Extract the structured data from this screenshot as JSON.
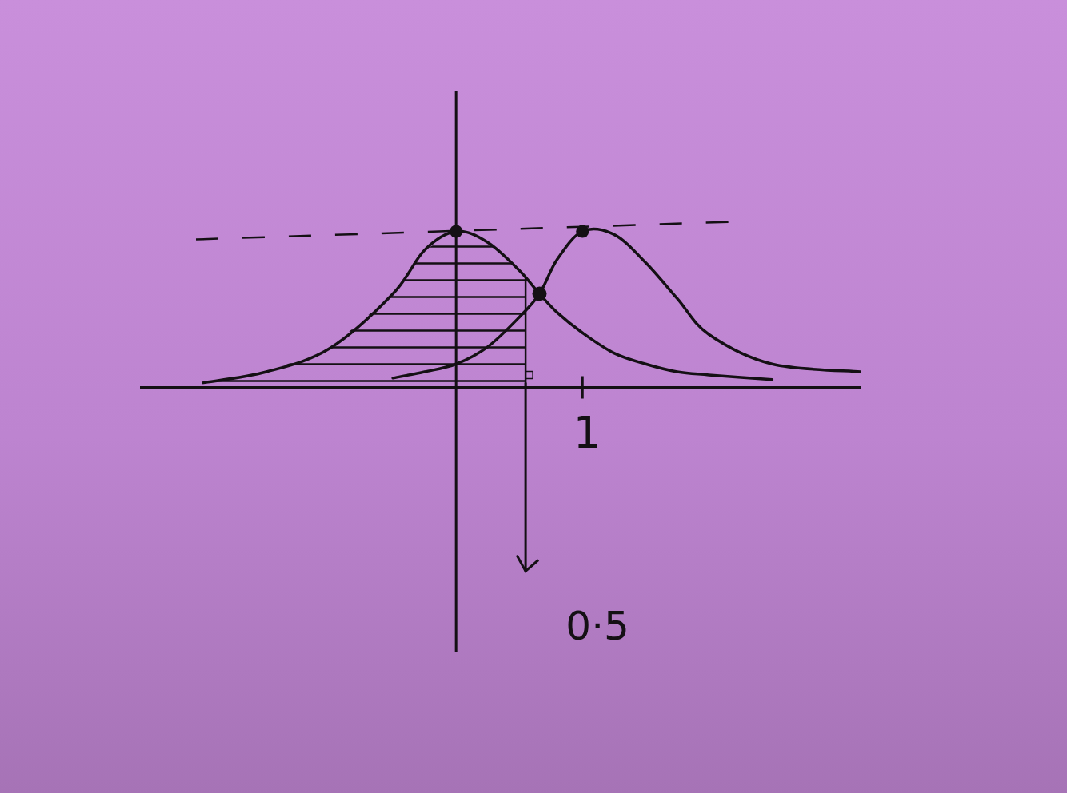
{
  "chart_data": {
    "type": "line",
    "x": [
      -2.0,
      -1.5,
      -1.0,
      -0.5,
      -0.25,
      0,
      0.25,
      0.5,
      0.66,
      0.8,
      1.0,
      1.25,
      1.5,
      1.75,
      2.0,
      2.5,
      3.2
    ],
    "series": [
      {
        "color": "#141014",
        "values": [
          0.03,
          0.1,
          0.25,
          0.6,
          0.88,
          1.0,
          0.93,
          0.75,
          0.6,
          0.48,
          0.35,
          0.22,
          0.15,
          0.1,
          0.08,
          0.05,
          null
        ]
      },
      {
        "color": "#141014",
        "values": [
          null,
          null,
          null,
          0.06,
          0.1,
          0.15,
          0.26,
          0.45,
          0.6,
          0.82,
          1.0,
          0.98,
          0.8,
          0.57,
          0.34,
          0.15,
          0.1
        ]
      }
    ],
    "xlim": [
      -2.5,
      3.2
    ],
    "ylim": [
      -1.7,
      1.9
    ],
    "xticks": [
      1
    ],
    "yticks": [],
    "tick_labels": "x",
    "marker": "dot",
    "annotations": [
      {
        "text": "0·5",
        "x": 0.55
      }
    ]
  }
}
